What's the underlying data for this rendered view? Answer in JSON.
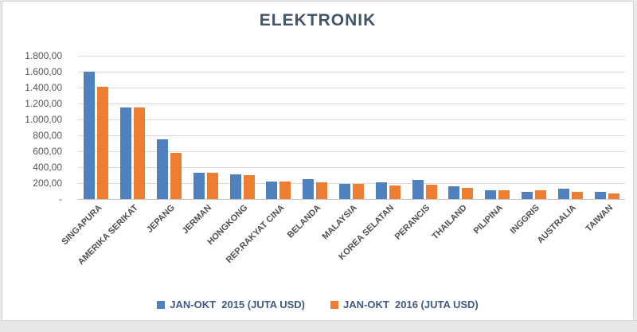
{
  "chart_data": {
    "type": "bar",
    "title": "ELEKTRONIK",
    "categories": [
      "SINGAPURA",
      "AMERIKA SERIKAT",
      "JEPANG",
      "JERMAN",
      "HONGKONG",
      "REP.RAKYAT CINA",
      "BELANDA",
      "MALAYSIA",
      "KOREA SELATAN",
      "PERANCIS",
      "THAILAND",
      "PILIPINA",
      "INGGRIS",
      "AUSTRALIA",
      "TAIWAN"
    ],
    "series": [
      {
        "name": "JAN-OKT  2015 (JUTA USD)",
        "color": "#4e81bd",
        "values": [
          1600,
          1155,
          750,
          330,
          315,
          220,
          250,
          190,
          210,
          240,
          160,
          110,
          90,
          130,
          95
        ]
      },
      {
        "name": "JAN-OKT  2016 (JUTA USD)",
        "color": "#ed7d31",
        "values": [
          1410,
          1150,
          580,
          330,
          300,
          220,
          210,
          195,
          175,
          180,
          145,
          115,
          110,
          90,
          70
        ]
      }
    ],
    "y_axis": {
      "min": 0,
      "max": 1800,
      "step": 200,
      "tick_labels": [
        "1.800,00",
        "1.600,00",
        "1.400,00",
        "1.200,00",
        "1.000,00",
        "800,00",
        "600,00",
        "400,00",
        "200,00",
        "-"
      ]
    },
    "grid": true,
    "legend_position": "bottom",
    "colors": {
      "title_text": "#44546a",
      "legend_text": "#3e5a85",
      "axis_text": "#555555",
      "gridline": "#d9d9d9",
      "plot_background": "#ffffff"
    }
  }
}
